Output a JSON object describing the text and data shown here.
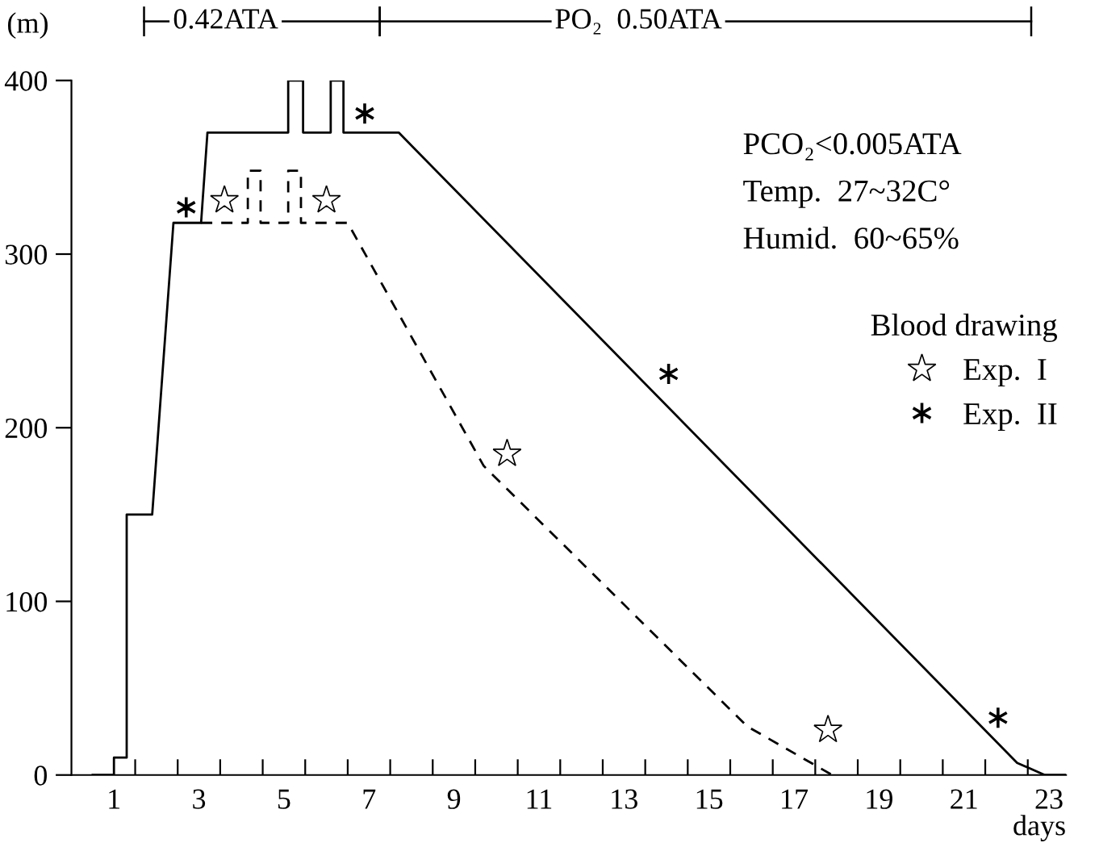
{
  "chart_data": {
    "type": "line",
    "xlabel": "days",
    "ylabel": "(m)",
    "xlim": [
      0,
      23.4
    ],
    "ylim": [
      0,
      400
    ],
    "xticks": [
      1,
      3,
      5,
      7,
      9,
      11,
      13,
      15,
      17,
      19,
      21,
      23,
      {
        "value": 1.5,
        "label": null
      },
      {
        "value": 2.5,
        "label": null
      },
      {
        "value": 3.5,
        "label": null
      },
      {
        "value": 4.5,
        "label": null
      },
      {
        "value": 5.5,
        "label": null
      },
      {
        "value": 6.5,
        "label": null
      },
      {
        "value": 7.5,
        "label": null
      },
      {
        "value": 8.5,
        "label": null
      },
      {
        "value": 9.5,
        "label": null
      },
      {
        "value": 10.5,
        "label": null
      },
      {
        "value": 11.5,
        "label": null
      },
      {
        "value": 12.5,
        "label": null
      },
      {
        "value": 13.5,
        "label": null
      },
      {
        "value": 14.5,
        "label": null
      },
      {
        "value": 15.5,
        "label": null
      },
      {
        "value": 16.5,
        "label": null
      },
      {
        "value": 17.5,
        "label": null
      },
      {
        "value": 18.5,
        "label": null
      },
      {
        "value": 19.5,
        "label": null
      },
      {
        "value": 20.5,
        "label": null
      },
      {
        "value": 21.5,
        "label": null
      },
      {
        "value": 22.5,
        "label": null
      }
    ],
    "yticks": [
      0,
      100,
      200,
      300,
      400
    ],
    "grid": false,
    "legend": "right",
    "legend_title": "Blood drawing",
    "series": [
      {
        "color": "#000000",
        "line_style": "solid",
        "marker": "none",
        "x": [
          0.5,
          1.0,
          1.0,
          1.3,
          1.3,
          1.9,
          2.4,
          3.05,
          3.2,
          5.1,
          5.1,
          5.45,
          5.45,
          6.1,
          6.1,
          6.4,
          6.4,
          7.7,
          22.25,
          22.9,
          23.4
        ],
        "values": [
          0,
          0,
          10,
          10,
          150,
          150,
          318,
          318,
          370,
          370,
          400,
          400,
          370,
          370,
          400,
          400,
          370,
          370,
          7,
          0,
          0
        ]
      },
      {
        "color": "#000000",
        "line_style": "dashed",
        "marker": "none",
        "x": [
          3.05,
          4.15,
          4.15,
          4.45,
          4.45,
          5.1,
          5.1,
          5.4,
          5.4,
          6.5,
          9.7,
          15.9,
          17.9
        ],
        "values": [
          318,
          318,
          348,
          348,
          318,
          318,
          348,
          348,
          318,
          318,
          178,
          28,
          0
        ]
      },
      {
        "type": "scatter",
        "name": "Exp.  I",
        "color": "#000000",
        "marker": "star",
        "x": [
          3.6,
          6.0,
          10.25,
          17.8
        ],
        "values": [
          331,
          331,
          185,
          26
        ]
      },
      {
        "type": "scatter",
        "name": "Exp.  II",
        "color": "#000000",
        "marker": "cross",
        "x": [
          2.7,
          6.9,
          14.05,
          21.8
        ],
        "values": [
          327,
          381,
          231,
          33
        ]
      }
    ],
    "annotations": [
      "0.42ATA",
      "PO₂  0.50ATA",
      "PCO₂<0.005ATA",
      "Temp.  27~32C°",
      "Humid.  60~65%"
    ]
  }
}
